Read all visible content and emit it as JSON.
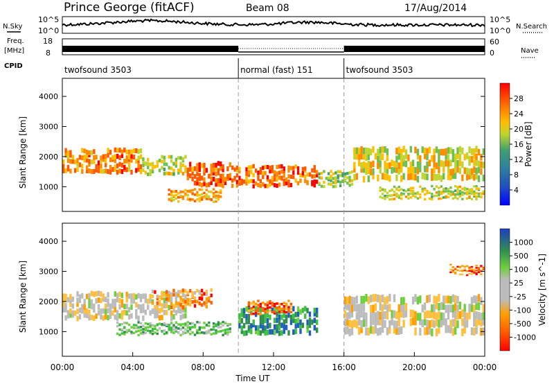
{
  "header": {
    "station": "Prince George (fitACF)",
    "beam": "Beam 08",
    "date": "17/Aug/2014"
  },
  "strip_labels": {
    "nsky": "N.Sky",
    "freq_line1": "Freq.",
    "freq_line2": "[MHz]",
    "cpid": "CPID",
    "nsearch": "N.Search",
    "nave": "Nave"
  },
  "chart_data": [
    {
      "type": "line",
      "panel": "noise",
      "series": [
        {
          "name": "N.Sky",
          "style": "solid"
        },
        {
          "name": "N.Search",
          "style": "dotted"
        }
      ],
      "y_left_ticks": [
        "10^5",
        "10^0"
      ],
      "y_right_ticks": [
        "10^5",
        "10^0"
      ],
      "scale": "log"
    },
    {
      "type": "line",
      "panel": "frequency",
      "series": [
        {
          "name": "Freq.",
          "style": "solid"
        },
        {
          "name": "Nave",
          "style": "dotted"
        }
      ],
      "y_left_ticks": [
        "18",
        "8"
      ],
      "y_right_ticks": [
        "60",
        "0"
      ],
      "ylim_left": [
        8,
        18
      ],
      "ylim_right": [
        0,
        60
      ]
    },
    {
      "type": "table",
      "panel": "cpid",
      "segments": [
        {
          "label": "twofsound 3503",
          "start_h": 0,
          "end_h": 10
        },
        {
          "label": "normal (fast) 151",
          "start_h": 10,
          "end_h": 16
        },
        {
          "label": "twofsound 3503",
          "start_h": 16,
          "end_h": 24
        }
      ]
    },
    {
      "type": "heatmap",
      "panel": "power",
      "ylabel": "Slant Range [km]",
      "ylim": [
        180,
        4600
      ],
      "y_ticks": [
        1000,
        2000,
        3000,
        4000
      ],
      "colorbar_label": "Power [dB]",
      "colorbar_ticks": [
        "28",
        "24",
        "20",
        "16",
        "12",
        "8",
        "4"
      ],
      "colormap": [
        "#0000ff",
        "#1f4fbf",
        "#2e7f9f",
        "#3f9f6f",
        "#6fbf4f",
        "#bfd42f",
        "#ffbf00",
        "#ff8c00",
        "#ff5a00",
        "#ff0000"
      ],
      "features": [
        {
          "from_h": 0.0,
          "to_h": 4.5,
          "range_km": [
            1450,
            2250
          ],
          "level": 0.75
        },
        {
          "from_h": 4.5,
          "to_h": 7.0,
          "range_km": [
            1400,
            2000
          ],
          "level": 0.55
        },
        {
          "from_h": 7.0,
          "to_h": 9.5,
          "range_km": [
            1000,
            1800
          ],
          "level": 0.85
        },
        {
          "from_h": 9.5,
          "to_h": 14.5,
          "range_km": [
            1000,
            1700
          ],
          "level": 0.8
        },
        {
          "from_h": 14.5,
          "to_h": 16.5,
          "range_km": [
            1000,
            1500
          ],
          "level": 0.5
        },
        {
          "from_h": 16.5,
          "to_h": 24.0,
          "range_km": [
            1200,
            2300
          ],
          "level": 0.6
        },
        {
          "from_h": 6.0,
          "to_h": 9.0,
          "range_km": [
            500,
            900
          ],
          "level": 0.7
        },
        {
          "from_h": 18.0,
          "to_h": 24.0,
          "range_km": [
            600,
            1000
          ],
          "level": 0.55
        }
      ]
    },
    {
      "type": "heatmap",
      "panel": "velocity",
      "ylabel": "Slant Range [km]",
      "ylim": [
        180,
        4600
      ],
      "y_ticks": [
        1000,
        2000,
        3000,
        4000
      ],
      "colorbar_label": "Velocity [m s^-1]",
      "colorbar_ticks": [
        "1000",
        "500",
        "100",
        "25",
        "-25",
        "-100",
        "-500",
        "-1000"
      ],
      "colormap": [
        "#ff0000",
        "#ff6000",
        "#ff9f00",
        "#ffbf3f",
        "#bcbcbc",
        "#bcbcbc",
        "#6fcf3f",
        "#3fbf3f",
        "#2f8f4f",
        "#1f5fbf"
      ],
      "features": [
        {
          "from_h": 0.0,
          "to_h": 7.0,
          "range_km": [
            1400,
            2300
          ],
          "level": 0.45
        },
        {
          "from_h": 5.0,
          "to_h": 8.5,
          "range_km": [
            1800,
            2400
          ],
          "level": 0.25
        },
        {
          "from_h": 3.0,
          "to_h": 9.5,
          "range_km": [
            900,
            1300
          ],
          "level": 0.7
        },
        {
          "from_h": 10.0,
          "to_h": 14.5,
          "range_km": [
            900,
            1800
          ],
          "level": 0.85
        },
        {
          "from_h": 10.5,
          "to_h": 13.0,
          "range_km": [
            1600,
            2000
          ],
          "level": 0.2
        },
        {
          "from_h": 16.0,
          "to_h": 24.0,
          "range_km": [
            900,
            2200
          ],
          "level": 0.45
        },
        {
          "from_h": 22.0,
          "to_h": 24.0,
          "range_km": [
            2900,
            3200
          ],
          "level": 0.2
        }
      ]
    }
  ],
  "x_axis": {
    "label": "Time UT",
    "ticks": [
      "00:00",
      "04:00",
      "08:00",
      "12:00",
      "16:00",
      "20:00",
      "00:00"
    ],
    "range_h": [
      0,
      24
    ]
  }
}
